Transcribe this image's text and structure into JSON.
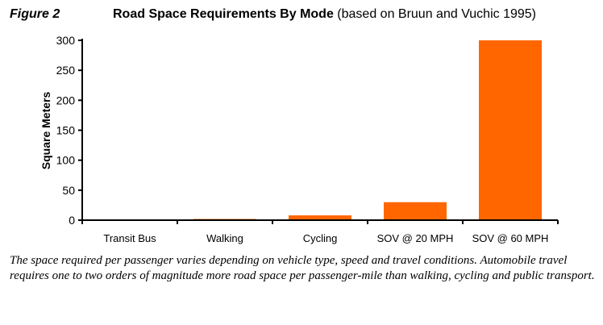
{
  "figure_label": "Figure 2",
  "chart_data": {
    "type": "bar",
    "title": "Road Space Requirements By Mode",
    "subtitle": "(based on Bruun and Vuchic 1995)",
    "categories": [
      "Transit Bus",
      "Walking",
      "Cycling",
      "SOV @ 20 MPH",
      "SOV @ 60 MPH"
    ],
    "values": [
      1,
      2,
      8,
      30,
      300
    ],
    "xlabel": "",
    "ylabel": "Square Meters",
    "ylim": [
      0,
      300
    ],
    "yticks": [
      0,
      50,
      100,
      150,
      200,
      250,
      300
    ],
    "grid": false,
    "bar_color": "#ff6600"
  },
  "caption": "The space required per passenger varies depending on vehicle type, speed and travel conditions. Automobile travel requires one to two orders of magnitude more road space per passenger-mile than walking, cycling and public transport."
}
